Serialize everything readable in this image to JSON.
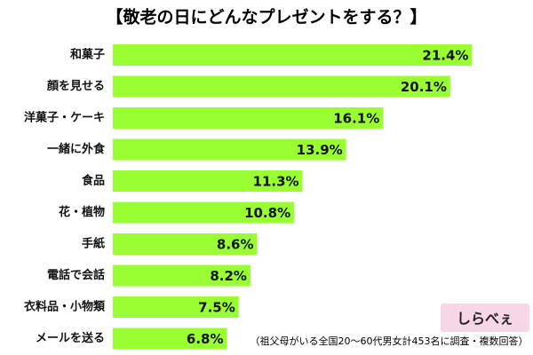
{
  "chart_data": {
    "type": "bar",
    "orientation": "horizontal",
    "title": "【敬老の日にどんなプレゼントをする？】",
    "note": "（祖父母がいる全国20～60代男女計453名に調査・複数回答）",
    "logo": "しらべぇ",
    "categories": [
      "和菓子",
      "顔を見せる",
      "洋菓子・ケーキ",
      "一緒に外食",
      "食品",
      "花・植物",
      "手紙",
      "電話で会話",
      "衣料品・小物類",
      "メールを送る"
    ],
    "values": [
      21.4,
      20.1,
      16.1,
      13.9,
      11.3,
      10.8,
      8.6,
      8.2,
      7.5,
      6.8
    ],
    "value_labels": [
      "21.4%",
      "20.1%",
      "16.1%",
      "13.9%",
      "11.3%",
      "10.8%",
      "8.6%",
      "8.2%",
      "7.5%",
      "6.8%"
    ],
    "color": "#99ff33"
  }
}
